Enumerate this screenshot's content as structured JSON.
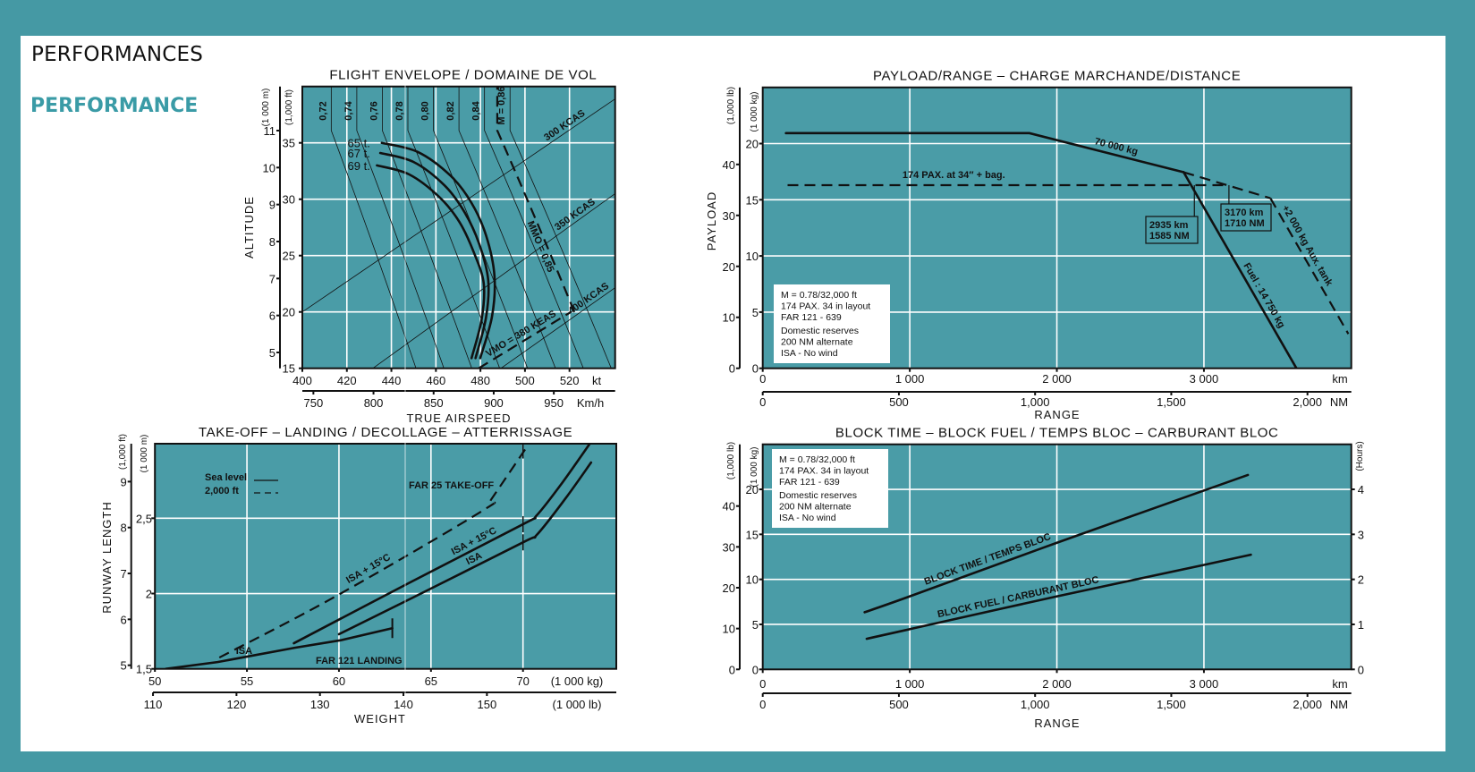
{
  "header": {
    "title_fr": "PERFORMANCES",
    "title_en": "PERFORMANCE"
  },
  "colors": {
    "page_bg": "#4599a4",
    "plot_bg": "#4a9ca7",
    "grid": "#ffffff",
    "line": "#111111",
    "heading_accent": "#3a9ba6"
  },
  "chart_data": [
    {
      "type": "line",
      "title": "FLIGHT ENVELOPE / DOMAINE DE VOL",
      "xlabel": "TRUE AIRSPEED",
      "ylabel": "ALTITUDE",
      "x_unit": "kt",
      "xlim": [
        400,
        540.5
      ],
      "x_ticks": [
        400,
        420,
        440,
        460,
        480,
        500,
        520
      ],
      "x2_unit": "Km/h",
      "x2_ticks": [
        750,
        800,
        850,
        900,
        950
      ],
      "y_unit": "(1,000 ft)",
      "ylim": [
        15,
        40
      ],
      "y_ticks": [
        15,
        20,
        25,
        30,
        35
      ],
      "y2_unit": "(1 000 m)",
      "y2_ticks": [
        5,
        6,
        7,
        8,
        9,
        10,
        11
      ],
      "grid": true,
      "mach_lines": [
        {
          "mach": 0.72,
          "label": "0,72"
        },
        {
          "mach": 0.74,
          "label": "0,74"
        },
        {
          "mach": 0.76,
          "label": "0,76"
        },
        {
          "mach": 0.78,
          "label": "0,78"
        },
        {
          "mach": 0.8,
          "label": "0,80"
        },
        {
          "mach": 0.82,
          "label": "0,82"
        },
        {
          "mach": 0.84,
          "label": "0,84"
        },
        {
          "mach": 0.86,
          "label": "M = 0,86"
        }
      ],
      "cas_lines": [
        {
          "label": "300 KCAS",
          "points": [
            [
              400,
              20
            ],
            [
              540.5,
              38.9
            ]
          ]
        },
        {
          "label": "350 KCAS",
          "points": [
            [
              431.7,
              15
            ],
            [
              540.5,
              30.5
            ]
          ]
        },
        {
          "label": "400 KCAS",
          "points": [
            [
              489.2,
              15
            ],
            [
              540.5,
              22.15
            ]
          ]
        }
      ],
      "limits": {
        "vmo": {
          "label": "VMO = 380 KEAS",
          "points": [
            [
              479.2,
              15
            ],
            [
              520.7,
              20
            ]
          ]
        },
        "mmo": {
          "label": "MMO = 0,85",
          "mach": 0.85,
          "from_kft": 20
        }
      },
      "series": [
        {
          "name": "65 t.",
          "points": [
            [
              435.7,
              35.0
            ],
            [
              451.8,
              34.2
            ],
            [
              466.5,
              32.1
            ],
            [
              475.9,
              29.7
            ],
            [
              482.5,
              26.8
            ],
            [
              486.3,
              23.2
            ],
            [
              485.2,
              19.6
            ],
            [
              479.9,
              15.9
            ]
          ]
        },
        {
          "name": "67 t.",
          "points": [
            [
              435.0,
              34.1
            ],
            [
              450.0,
              33.3
            ],
            [
              464.0,
              31.2
            ],
            [
              473.0,
              28.8
            ],
            [
              479.5,
              26.0
            ],
            [
              483.5,
              22.8
            ],
            [
              482.5,
              19.5
            ],
            [
              477.8,
              15.9
            ]
          ]
        },
        {
          "name": "69 t.",
          "points": [
            [
              433.5,
              33.0
            ],
            [
              448.0,
              32.2
            ],
            [
              461.5,
              30.2
            ],
            [
              470.5,
              28.0
            ],
            [
              477.0,
              25.3
            ],
            [
              481.5,
              22.5
            ],
            [
              480.5,
              19.3
            ],
            [
              476.0,
              15.9
            ]
          ]
        }
      ]
    },
    {
      "type": "line",
      "title": "PAYLOAD/RANGE – CHARGE MARCHANDE/DISTANCE",
      "xlabel": "RANGE",
      "ylabel": "PAYLOAD",
      "x_unit": "km",
      "xlim": [
        0,
        4002
      ],
      "x_ticks": [
        0,
        1000,
        2000,
        3000
      ],
      "x_tick_labels": [
        "0",
        "1 000",
        "2 000",
        "3 000"
      ],
      "x2_unit": "NM",
      "x2_ticks": [
        0,
        500,
        1000,
        1500,
        2000
      ],
      "x2_tick_labels": [
        "0",
        "500",
        "1,000",
        "1,500",
        "2,000"
      ],
      "y_unit": "(1 000 kg)",
      "ylim": [
        0,
        25
      ],
      "y_ticks": [
        0,
        5,
        10,
        15,
        20
      ],
      "y2_unit": "(1,000 lb)",
      "y2_ticks": [
        0,
        10,
        20,
        30,
        40
      ],
      "grid": true,
      "series": [
        {
          "name": "70 000 kg",
          "style": "solid",
          "points": [
            [
              158,
              20.93
            ],
            [
              1813,
              20.93
            ],
            [
              2862,
              17.45
            ]
          ]
        },
        {
          "name": "Fuel : 14 750 kg",
          "style": "solid",
          "points": [
            [
              2862,
              17.45
            ],
            [
              3629,
              0
            ]
          ]
        },
        {
          "name": "174 PAX. at 34″ + bag.",
          "style": "dashed",
          "points": [
            [
              169,
              16.3
            ],
            [
              3170,
              16.3
            ]
          ]
        },
        {
          "name": "",
          "style": "dashed",
          "points": [
            [
              2862,
              17.45
            ],
            [
              3452,
              15.14
            ]
          ]
        },
        {
          "name": "+2 000 kg Aux. tank",
          "style": "dashed",
          "points": [
            [
              3452,
              15.14
            ],
            [
              3982,
              3.06
            ]
          ]
        }
      ],
      "annotations": [
        {
          "x": 2935,
          "y": 16.3,
          "lines": [
            "2935 km",
            "1585 NM"
          ]
        },
        {
          "x": 3170,
          "y": 16.3,
          "lines": [
            "3170 km",
            "1710 NM"
          ]
        }
      ],
      "info_box": [
        "M = 0.78/32,000 ft",
        "174 PAX. 34 in layout",
        "FAR 121 - 639",
        "Domestic reserves",
        "200 NM alternate",
        "ISA - No wind"
      ]
    },
    {
      "type": "line",
      "title": "TAKE-OFF – LANDING / DECOLLAGE – ATTERRISSAGE",
      "xlabel": "WEIGHT",
      "ylabel": "RUNWAY LENGTH",
      "x_unit": "(1 000 kg)",
      "xlim": [
        50,
        75.07
      ],
      "x_ticks": [
        50,
        55,
        60,
        65,
        70
      ],
      "x2_unit": "(1 000 lb)",
      "x2_ticks": [
        110,
        120,
        130,
        140,
        150
      ],
      "y_unit": "(1 000 m)",
      "ylim": [
        1.5,
        2.995
      ],
      "y_ticks": [
        1.5,
        2,
        2.5
      ],
      "y_tick_labels": [
        "1,5",
        "2",
        "2,5"
      ],
      "y2_unit": "(1,000 ft)",
      "y2_ticks": [
        5,
        6,
        7,
        8,
        9
      ],
      "grid": true,
      "legend": [
        {
          "label": "Sea level",
          "style": "solid"
        },
        {
          "label": "2,000 ft",
          "style": "dashed"
        }
      ],
      "annotations": [
        "FAR 25 TAKE-OFF",
        "FAR 121 LANDING"
      ],
      "series": [
        {
          "name": "ISA",
          "style": "solid",
          "points": [
            [
              50.6,
              1.5
            ],
            [
              53.4,
              1.545
            ],
            [
              57.6,
              1.64
            ],
            [
              60.1,
              1.69
            ],
            [
              62.9,
              1.77
            ]
          ]
        },
        {
          "name": "ISA + 15°C",
          "style": "solid",
          "points": [
            [
              57.55,
              1.67
            ],
            [
              63.8,
              2.07
            ],
            [
              70,
              2.46
            ],
            [
              70.75,
              2.52
            ],
            [
              72.1,
              2.73
            ],
            [
              73.6,
              2.99
            ]
          ]
        },
        {
          "name": "ISA",
          "style": "solid",
          "points": [
            [
              60,
              1.73
            ],
            [
              63.8,
              1.96
            ],
            [
              70,
              2.34
            ],
            [
              70.75,
              2.39
            ],
            [
              72.3,
              2.63
            ],
            [
              73.7,
              2.87
            ]
          ]
        },
        {
          "name": "ISA + 15°C",
          "style": "dashed",
          "points": [
            [
              53.5,
              1.575
            ],
            [
              59.8,
              1.98
            ],
            [
              67.8,
              2.55
            ],
            [
              68.3,
              2.63
            ],
            [
              70.3,
              2.99
            ]
          ]
        }
      ]
    },
    {
      "type": "line",
      "title": "BLOCK TIME – BLOCK FUEL / TEMPS BLOC – CARBURANT BLOC",
      "xlabel": "RANGE",
      "x_unit": "km",
      "xlim": [
        0,
        4002
      ],
      "x_ticks": [
        0,
        1000,
        2000,
        3000
      ],
      "x_tick_labels": [
        "0",
        "1 000",
        "2 000",
        "3 000"
      ],
      "x2_unit": "NM",
      "x2_ticks": [
        0,
        500,
        1000,
        1500,
        2000
      ],
      "x2_tick_labels": [
        "0",
        "500",
        "1,000",
        "1,500",
        "2,000"
      ],
      "y_unit": "(1 000 kg)",
      "ylim": [
        0,
        25
      ],
      "y_ticks": [
        0,
        5,
        10,
        15,
        20
      ],
      "y2_unit": "(1,000 lb)",
      "y2_ticks": [
        0,
        10,
        20,
        30,
        40
      ],
      "y3_unit": "(Hours)",
      "y3_ticks": [
        0,
        1,
        2,
        3,
        4
      ],
      "grid": true,
      "series": [
        {
          "name": "BLOCK TIME / TEMPS BLOC",
          "axis": "right",
          "points": [
            [
              693,
              1.27
            ],
            [
              998,
              1.62
            ],
            [
              1998,
              2.81
            ],
            [
              3299,
              4.32
            ]
          ]
        },
        {
          "name": "BLOCK FUEL / CARBURANT BLOC",
          "axis": "left",
          "points": [
            [
              707,
              3.4
            ],
            [
              998,
              4.46
            ],
            [
              1998,
              8.1
            ],
            [
              2990,
              11.57
            ],
            [
              3319,
              12.74
            ]
          ]
        }
      ],
      "info_box": [
        "M = 0.78/32,000 ft",
        "174 PAX. 34 in layout",
        "FAR 121 - 639",
        "Domestic reserves",
        "200 NM alternate",
        "ISA - No wind"
      ]
    }
  ]
}
